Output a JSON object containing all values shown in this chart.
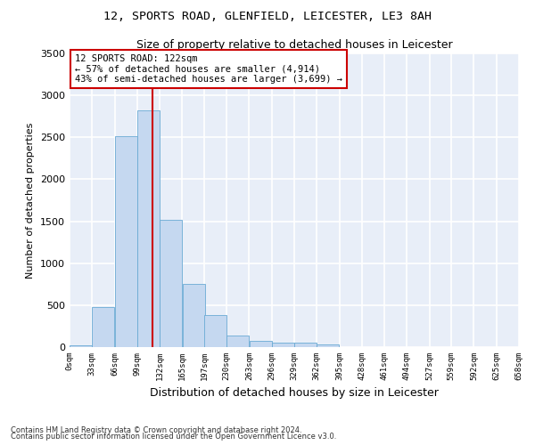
{
  "title1": "12, SPORTS ROAD, GLENFIELD, LEICESTER, LE3 8AH",
  "title2": "Size of property relative to detached houses in Leicester",
  "xlabel": "Distribution of detached houses by size in Leicester",
  "ylabel": "Number of detached properties",
  "bar_color": "#c5d8f0",
  "bar_edge_color": "#6aaad4",
  "background_color": "#e8eef8",
  "grid_color": "#ffffff",
  "bin_edges": [
    0,
    33,
    66,
    99,
    132,
    165,
    197,
    230,
    263,
    296,
    329,
    362,
    395,
    428,
    461,
    494,
    527,
    559,
    592,
    625,
    658
  ],
  "bin_labels": [
    "0sqm",
    "33sqm",
    "66sqm",
    "99sqm",
    "132sqm",
    "165sqm",
    "197sqm",
    "230sqm",
    "263sqm",
    "296sqm",
    "329sqm",
    "362sqm",
    "395sqm",
    "428sqm",
    "461sqm",
    "494sqm",
    "527sqm",
    "559sqm",
    "592sqm",
    "625sqm",
    "658sqm"
  ],
  "bar_heights": [
    20,
    480,
    2510,
    2820,
    1520,
    750,
    385,
    140,
    70,
    55,
    55,
    30,
    0,
    0,
    0,
    0,
    0,
    0,
    0,
    0
  ],
  "property_size": 122,
  "vline_color": "#cc0000",
  "annotation_text": "12 SPORTS ROAD: 122sqm\n← 57% of detached houses are smaller (4,914)\n43% of semi-detached houses are larger (3,699) →",
  "annotation_box_color": "#ffffff",
  "annotation_box_edge": "#cc0000",
  "ylim": [
    0,
    3500
  ],
  "xlim": [
    0,
    658
  ],
  "yticks": [
    0,
    500,
    1000,
    1500,
    2000,
    2500,
    3000,
    3500
  ],
  "footnote1": "Contains HM Land Registry data © Crown copyright and database right 2024.",
  "footnote2": "Contains public sector information licensed under the Open Government Licence v3.0."
}
